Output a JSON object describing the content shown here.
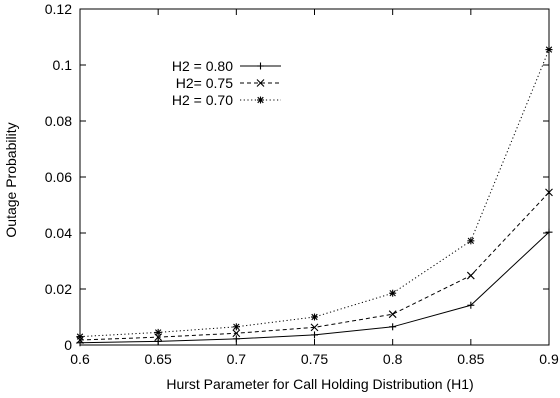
{
  "chart_data": {
    "type": "line",
    "xlabel": "Hurst Parameter for Call Holding Distribution (H1)",
    "ylabel": "Outage Probability",
    "xlim": [
      0.6,
      0.9
    ],
    "ylim": [
      0,
      0.12
    ],
    "x_ticks": [
      0.6,
      0.65,
      0.7,
      0.75,
      0.8,
      0.85,
      0.9
    ],
    "x_tick_labels": [
      "0.6",
      "0.65",
      "0.7",
      "0.75",
      "0.8",
      "0.85",
      "0.9"
    ],
    "y_ticks": [
      0,
      0.02,
      0.04,
      0.06,
      0.08,
      0.1,
      0.12
    ],
    "y_tick_labels": [
      "0",
      "0.02",
      "0.04",
      "0.06",
      "0.08",
      "0.1",
      "0.12"
    ],
    "grid": false,
    "legend_position": "top-left",
    "x": [
      0.6,
      0.65,
      0.7,
      0.75,
      0.8,
      0.85,
      0.9
    ],
    "series": [
      {
        "name": "H2 = 0.80",
        "marker": "plus",
        "dash": "solid",
        "values": [
          0.0008,
          0.0013,
          0.0022,
          0.0036,
          0.0065,
          0.0142,
          0.0403
        ]
      },
      {
        "name": "H2= 0.75",
        "marker": "cross",
        "dash": "dashed",
        "values": [
          0.0018,
          0.0028,
          0.0042,
          0.0063,
          0.011,
          0.0248,
          0.0545
        ]
      },
      {
        "name": "H2 = 0.70",
        "marker": "star",
        "dash": "dotted",
        "values": [
          0.003,
          0.0045,
          0.0065,
          0.01,
          0.0185,
          0.0372,
          0.1055
        ]
      }
    ]
  }
}
